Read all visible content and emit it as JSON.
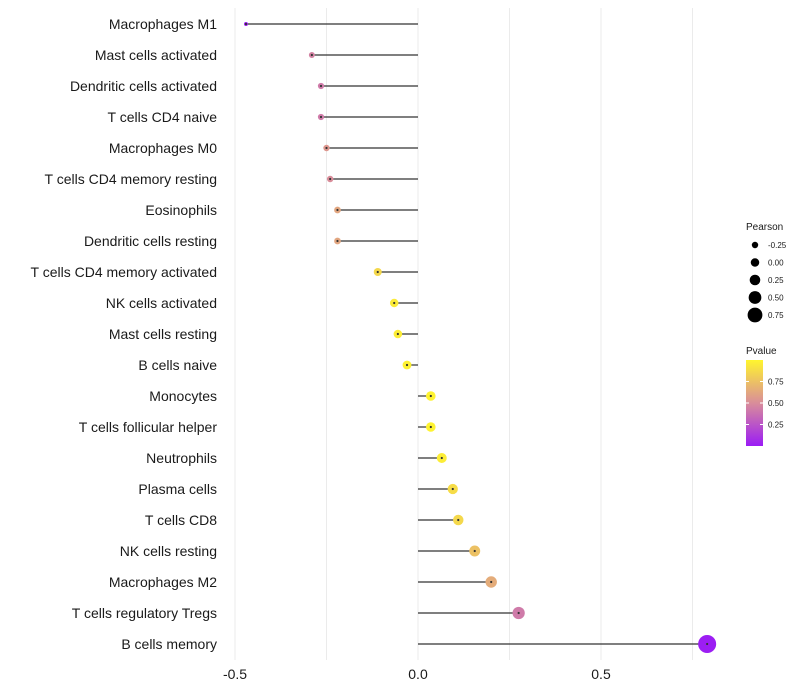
{
  "chart_data": {
    "type": "lollipop",
    "xlim": [
      -0.5,
      0.8
    ],
    "xticks": [
      -0.5,
      0.0,
      0.5
    ],
    "xtick_labels": [
      "-0.5",
      "0.0",
      "0.5"
    ],
    "categories": [
      "Macrophages M1",
      "Mast cells activated",
      "Dendritic cells activated",
      "T cells CD4 naive",
      "Macrophages M0",
      "T cells CD4 memory resting",
      "Eosinophils",
      "Dendritic cells resting",
      "T cells CD4 memory activated",
      "NK cells activated",
      "Mast cells resting",
      "B cells naive",
      "Monocytes",
      "T cells follicular helper",
      "Neutrophils",
      "Plasma cells",
      "T cells CD8",
      "NK cells resting",
      "Macrophages M2",
      "T cells regulatory  Tregs",
      "B cells memory"
    ],
    "pearson": [
      -0.47,
      -0.29,
      -0.265,
      -0.265,
      -0.25,
      -0.24,
      -0.22,
      -0.22,
      -0.11,
      -0.065,
      -0.055,
      -0.03,
      0.035,
      0.035,
      0.065,
      0.095,
      0.11,
      0.155,
      0.2,
      0.275,
      0.79
    ],
    "pvalue": [
      0.01,
      0.45,
      0.42,
      0.42,
      0.55,
      0.5,
      0.62,
      0.62,
      0.86,
      0.95,
      0.96,
      0.98,
      0.99,
      0.99,
      0.96,
      0.88,
      0.86,
      0.75,
      0.65,
      0.42,
      0.01
    ],
    "legend_size": {
      "title": "Pearson",
      "values": [
        -0.25,
        0.0,
        0.25,
        0.5,
        0.75
      ],
      "labels": [
        "-0.25",
        "0.00",
        "0.25",
        "0.50",
        "0.75"
      ]
    },
    "legend_color": {
      "title": "Pvalue",
      "labels": [
        "0.75",
        "0.50",
        "0.25"
      ],
      "values": [
        0.75,
        0.5,
        0.25
      ],
      "range": [
        0.0,
        1.0
      ],
      "low_color": "#9b1cf5",
      "mid_color": "#d98d9a",
      "high_color": "#fff52e"
    },
    "stem_color": "#333333",
    "grid_color": "#ebebeb"
  }
}
